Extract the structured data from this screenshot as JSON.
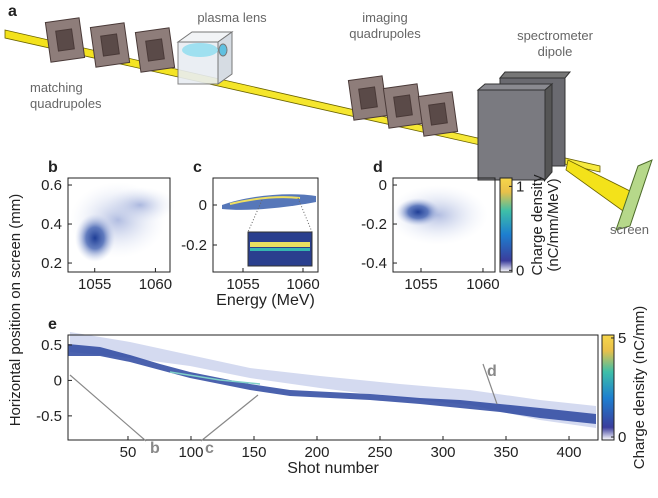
{
  "diagram": {
    "panel": "a",
    "labels": [
      [
        "plasma lens"
      ],
      [
        "matching",
        "quadrupoles"
      ],
      [
        "imaging",
        "quadrupoles"
      ],
      [
        "spectrometer",
        "dipole"
      ],
      [
        "screen"
      ]
    ]
  },
  "ylabel": "Horizontal position on screen (mm)",
  "chart_data": [
    {
      "type": "heatmap",
      "panel": "b",
      "xlim": [
        1052.8,
        1061.2
      ],
      "xticks": [
        1055,
        1060
      ],
      "ylim": [
        0.154,
        0.636
      ],
      "yticks": [
        0.2,
        0.4,
        0.6
      ]
    },
    {
      "type": "heatmap",
      "panel": "c",
      "xlabel": "Energy (MeV)",
      "xlim": [
        1052.5,
        1061.25
      ],
      "xticks": [
        1055,
        1060
      ],
      "ylim": [
        -0.335,
        0.135
      ],
      "yticks": [
        -0.2,
        0
      ]
    },
    {
      "type": "heatmap",
      "panel": "d",
      "xlim": [
        1052.74,
        1060.97
      ],
      "xticks": [
        1055,
        1060
      ],
      "ylim": [
        -0.446,
        0.036
      ],
      "yticks": [
        -0.4,
        -0.2,
        0
      ],
      "colorbar": {
        "label": [
          "Charge density",
          "(nC/mm/MeV)"
        ],
        "lim": [
          -0.02,
          1.1
        ],
        "ticks": [
          0,
          1
        ]
      }
    },
    {
      "type": "heatmap",
      "panel": "e",
      "xlabel": "Shot number",
      "xlim": [
        2.4,
        423
      ],
      "xticks": [
        50,
        100,
        150,
        200,
        250,
        300,
        350,
        400
      ],
      "ylim": [
        -0.84,
        0.64
      ],
      "yticks": [
        -0.5,
        0,
        0.5
      ],
      "annotations": [
        "b",
        "c",
        "d"
      ],
      "colorbar": {
        "label": [
          "Charge density (nC/mm)"
        ],
        "lim": [
          -0.15,
          5.15
        ],
        "ticks": [
          0,
          5
        ]
      }
    }
  ]
}
